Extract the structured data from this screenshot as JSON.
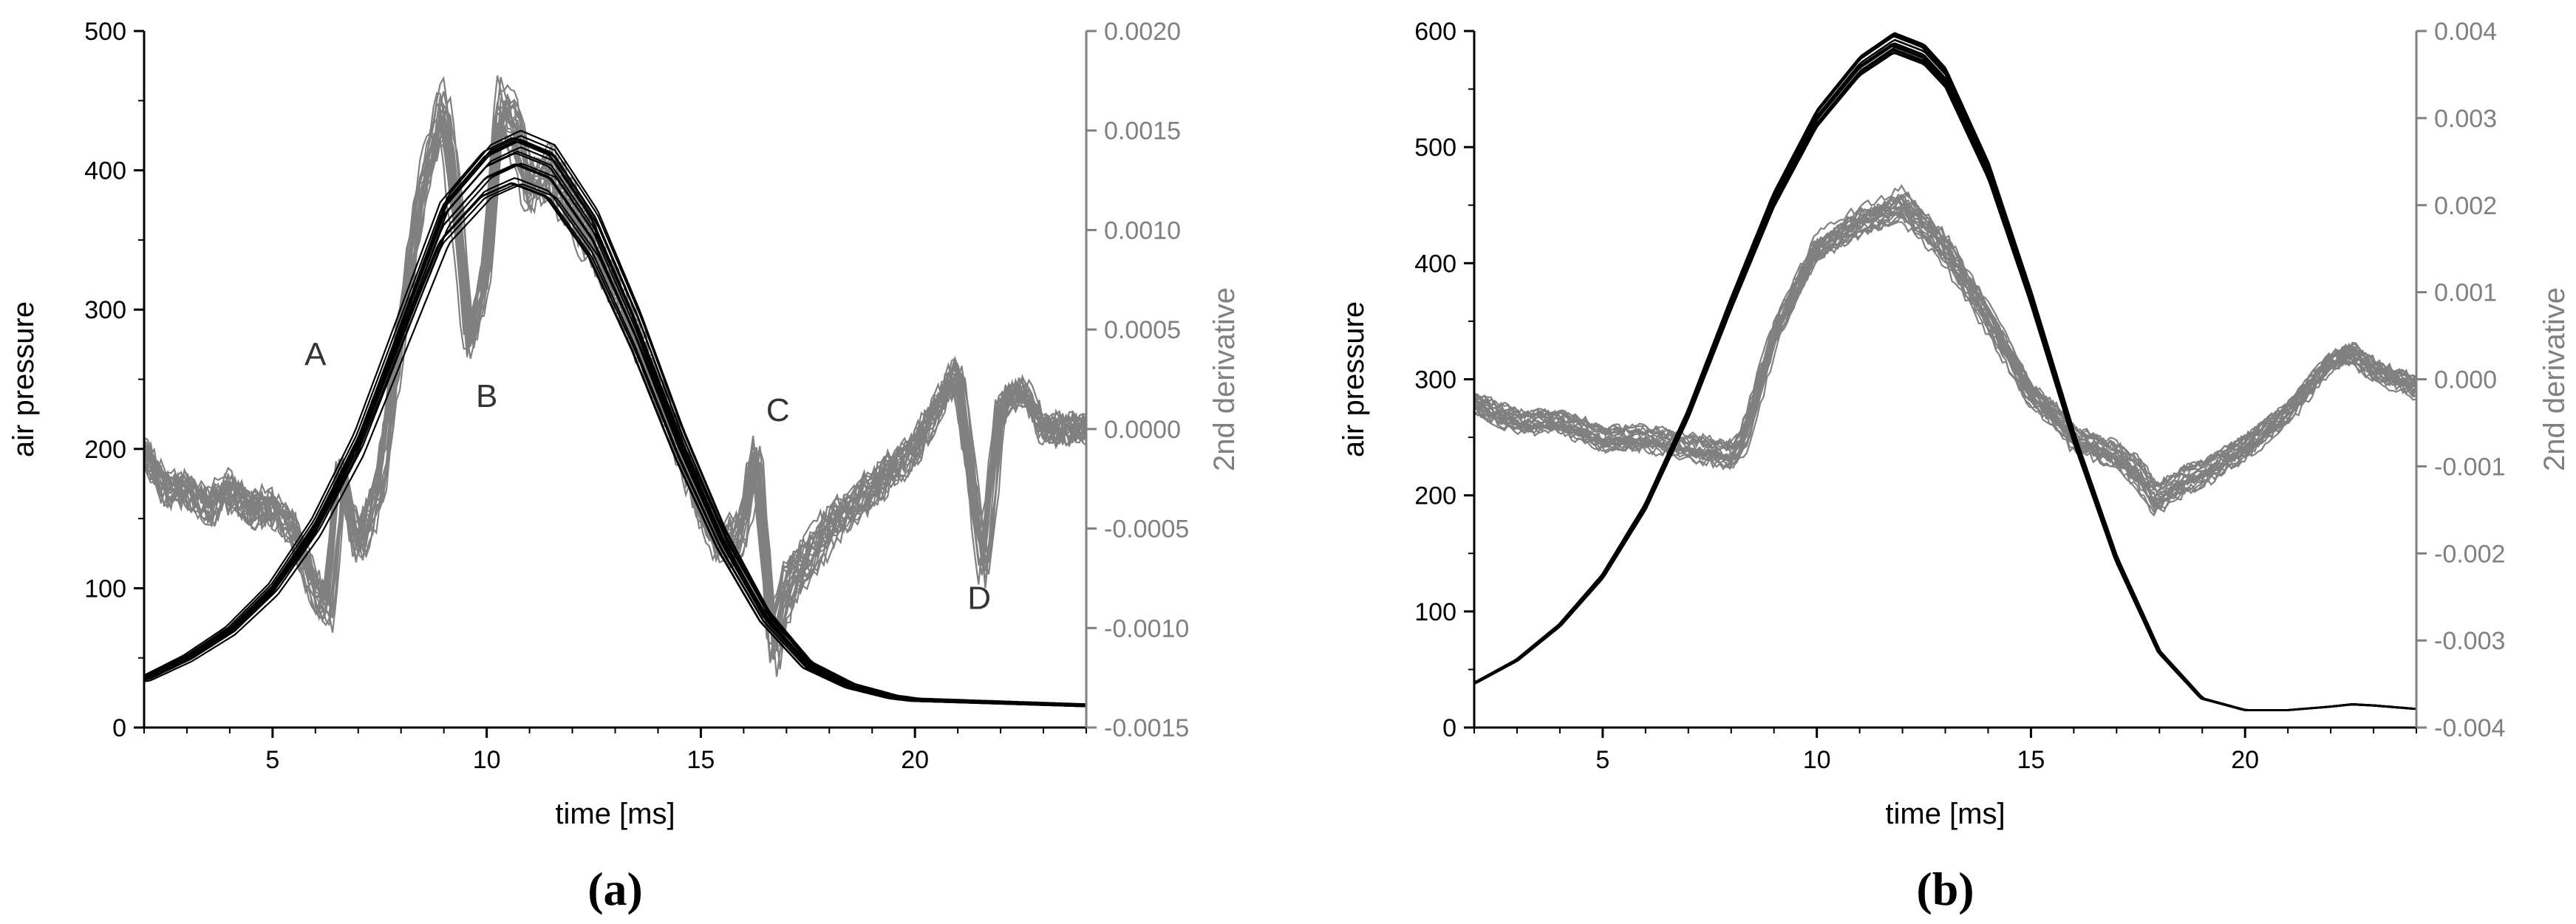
{
  "colors": {
    "pressure": "#000000",
    "derivative": "#808080",
    "axis": "#000000",
    "right_axis": "#808080"
  },
  "chart_data": [
    {
      "type": "line",
      "panel_label": "(a)",
      "xlabel": "time [ms]",
      "ylabel": "air pressure",
      "y2label": "2nd derivative",
      "xlim": [
        2,
        24
      ],
      "ylim": [
        0,
        500
      ],
      "y2lim": [
        -0.0015,
        0.002
      ],
      "x_ticks": [
        5,
        10,
        15,
        20
      ],
      "y_ticks": [
        0,
        100,
        200,
        300,
        400,
        500
      ],
      "y2_ticks": [
        "0.0020",
        "0.0015",
        "0.0010",
        "0.0005",
        "0.0000",
        "-0.0005",
        "-0.0010",
        "-0.0015"
      ],
      "grid": false,
      "annotations": [
        {
          "text": "A",
          "x": 6.0,
          "y": 260
        },
        {
          "text": "B",
          "x": 10.0,
          "y": 230
        },
        {
          "text": "C",
          "x": 16.8,
          "y": 220
        },
        {
          "text": "D",
          "x": 21.5,
          "y": 85
        }
      ],
      "series": [
        {
          "axis": "left",
          "x": [
            2,
            3,
            4,
            5,
            6,
            7,
            8,
            9,
            10,
            10.7,
            11.5,
            12.5,
            13.5,
            14.5,
            15.5,
            16.5,
            17.5,
            18.5,
            19.5,
            20,
            21,
            22,
            23,
            24
          ],
          "values": [
            35,
            50,
            70,
            100,
            145,
            205,
            285,
            365,
            400,
            410,
            400,
            355,
            285,
            205,
            135,
            80,
            45,
            30,
            22,
            20,
            19,
            18,
            17,
            16
          ]
        },
        {
          "axis": "right",
          "x": [
            2,
            2.5,
            3,
            3.5,
            4,
            4.5,
            5,
            5.5,
            6,
            6.3,
            6.6,
            7,
            7.5,
            8,
            8.5,
            9,
            9.3,
            9.6,
            10,
            10.3,
            10.7,
            11,
            11.5,
            12,
            13,
            14,
            15,
            15.5,
            16,
            16.3,
            16.7,
            17,
            18,
            19,
            20,
            20.5,
            21,
            21.3,
            21.6,
            22,
            22.5,
            23,
            24
          ],
          "values": [
            -0.0001,
            -0.0003,
            -0.0003,
            -0.0004,
            -0.0003,
            -0.0004,
            -0.0004,
            -0.0005,
            -0.0008,
            -0.0009,
            -0.0002,
            -0.0006,
            -0.0003,
            0.0005,
            0.0012,
            0.0016,
            0.0011,
            0.0004,
            0.0008,
            0.0016,
            0.0015,
            0.0012,
            0.0013,
            0.0011,
            0.0007,
            0.0002,
            -0.0004,
            -0.0006,
            -0.0005,
            -0.0001,
            -0.0011,
            -0.0008,
            -0.0005,
            -0.0003,
            -0.0001,
            0.0001,
            0.0003,
            -0.0002,
            -0.0007,
            0.0001,
            0.0002,
            0.0,
            0.0
          ]
        }
      ]
    },
    {
      "type": "line",
      "panel_label": "(b)",
      "xlabel": "time [ms]",
      "ylabel": "air pressure",
      "y2label": "2nd derivative",
      "xlim": [
        2,
        24
      ],
      "ylim": [
        0,
        600
      ],
      "y2lim": [
        -0.004,
        0.004
      ],
      "x_ticks": [
        5,
        10,
        15,
        20
      ],
      "y_ticks": [
        0,
        100,
        200,
        300,
        400,
        500,
        600
      ],
      "y2_ticks": [
        "0.004",
        "0.003",
        "0.002",
        "0.001",
        "0.000",
        "-0.001",
        "-0.002",
        "-0.003",
        "-0.004"
      ],
      "grid": false,
      "annotations": [],
      "series": [
        {
          "axis": "left",
          "x": [
            2,
            3,
            4,
            5,
            6,
            7,
            8,
            9,
            10,
            11,
            11.8,
            12.5,
            13,
            14,
            15,
            16,
            17,
            18,
            19,
            20,
            20.5,
            21,
            22,
            22.5,
            23,
            24
          ],
          "values": [
            38,
            58,
            88,
            130,
            190,
            270,
            365,
            455,
            525,
            570,
            590,
            580,
            560,
            480,
            370,
            250,
            145,
            65,
            25,
            15,
            15,
            15,
            18,
            20,
            19,
            16
          ]
        },
        {
          "axis": "right",
          "x": [
            2,
            3,
            4,
            5,
            6,
            7,
            8,
            8.3,
            9,
            10,
            11,
            12,
            13,
            14,
            15,
            15.5,
            16,
            17,
            17.5,
            17.9,
            18.5,
            19,
            20,
            21,
            22,
            22.5,
            23,
            24
          ],
          "values": [
            -0.0003,
            -0.0005,
            -0.0005,
            -0.0007,
            -0.0007,
            -0.0008,
            -0.0009,
            -0.0007,
            0.0005,
            0.0015,
            0.0018,
            0.002,
            0.0015,
            0.0007,
            -0.0002,
            -0.0004,
            -0.0007,
            -0.0009,
            -0.0011,
            -0.0014,
            -0.0012,
            -0.0011,
            -0.0008,
            -0.0004,
            0.0002,
            0.0003,
            0.0001,
            -0.0001
          ]
        }
      ]
    }
  ]
}
